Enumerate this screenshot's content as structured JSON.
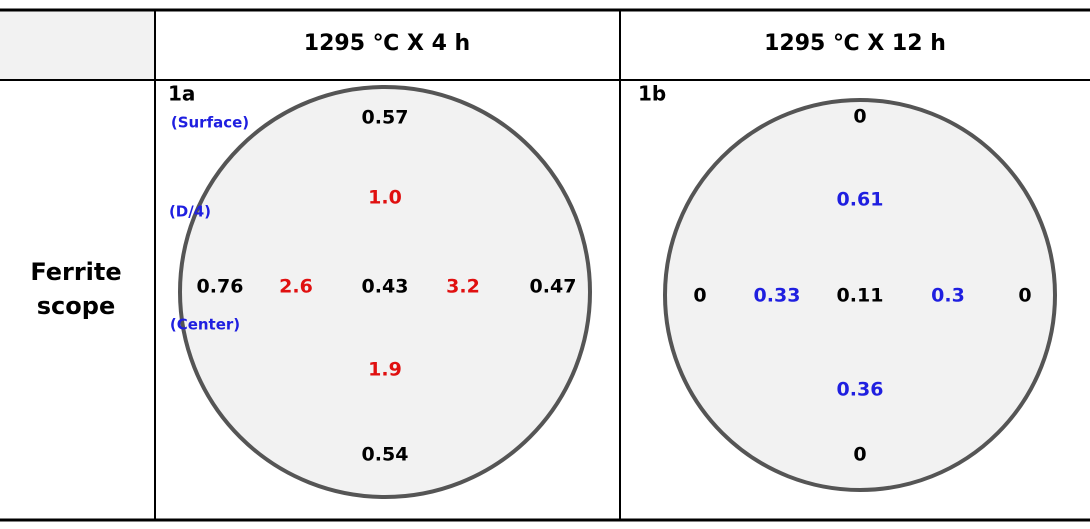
{
  "header": {
    "columns": [
      "1295 ℃ X 4 h",
      "1295 ℃ X 12 h"
    ]
  },
  "row_label": [
    "Ferrite",
    "scope"
  ],
  "panels": [
    {
      "label": "1a",
      "positions": [
        "(Surface)",
        "(D/4)",
        "(Center)"
      ],
      "position_color": "#1f1fe0",
      "readings": [
        {
          "text": "0.57",
          "color": "#000000"
        },
        {
          "text": "1.0",
          "color": "#e01010"
        },
        {
          "text": "0.76",
          "color": "#000000"
        },
        {
          "text": "2.6",
          "color": "#e01010"
        },
        {
          "text": "0.43",
          "color": "#000000"
        },
        {
          "text": "3.2",
          "color": "#e01010"
        },
        {
          "text": "0.47",
          "color": "#000000"
        },
        {
          "text": "1.9",
          "color": "#e01010"
        },
        {
          "text": "0.54",
          "color": "#000000"
        }
      ]
    },
    {
      "label": "1b",
      "readings": [
        {
          "text": "0",
          "color": "#000000"
        },
        {
          "text": "0.61",
          "color": "#1f1fe0"
        },
        {
          "text": "0",
          "color": "#000000"
        },
        {
          "text": "0.33",
          "color": "#1f1fe0"
        },
        {
          "text": "0.11",
          "color": "#000000"
        },
        {
          "text": "0.3",
          "color": "#1f1fe0"
        },
        {
          "text": "0",
          "color": "#000000"
        },
        {
          "text": "0.36",
          "color": "#1f1fe0"
        },
        {
          "text": "0",
          "color": "#000000"
        }
      ]
    }
  ]
}
